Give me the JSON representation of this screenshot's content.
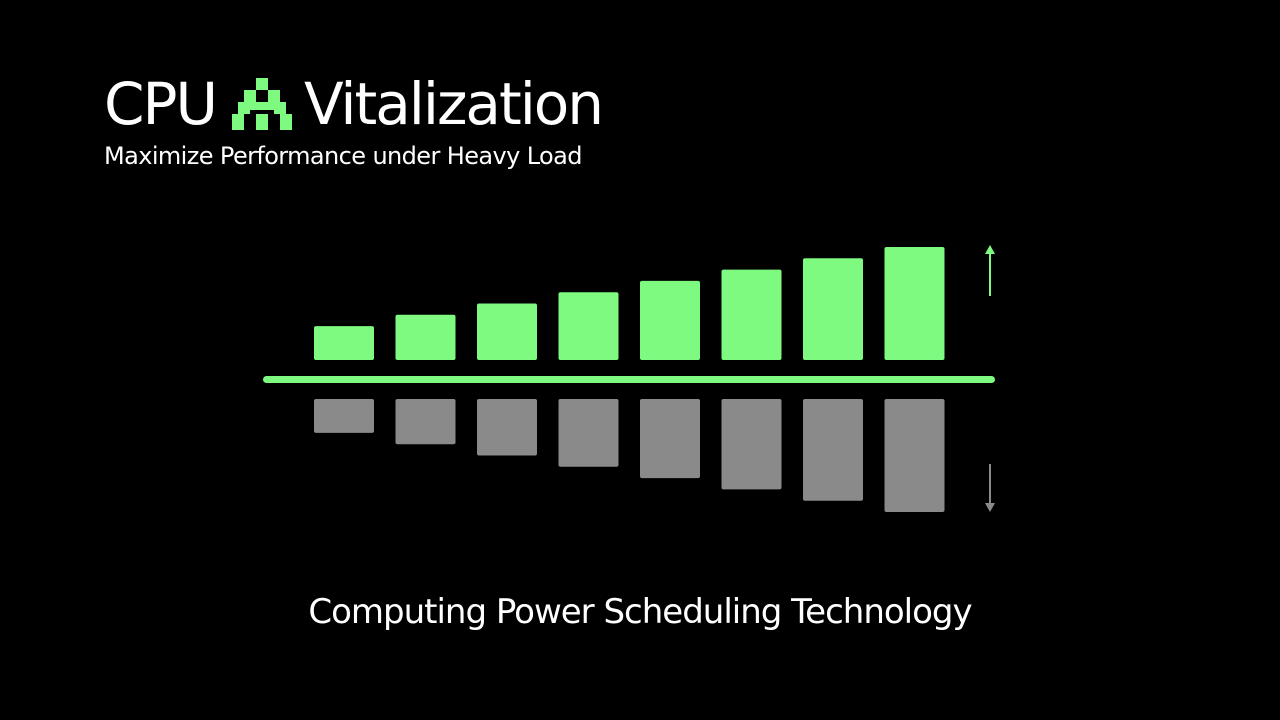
{
  "header": {
    "title_left": "CPU",
    "title_right": "Vitalization",
    "subtitle": "Maximize Performance under Heavy Load",
    "logo_icon": "stepped-pyramid-icon"
  },
  "footer": {
    "caption": "Computing Power Scheduling Technology"
  },
  "colors": {
    "background": "#000000",
    "accent_green": "#7dfa7f",
    "gray": "#8a8a8a",
    "text": "#ffffff"
  },
  "chart_data": {
    "type": "bar",
    "title": "",
    "xlabel": "",
    "ylabel": "",
    "categories": [
      "",
      "",
      "",
      "",
      "",
      "",
      "",
      ""
    ],
    "series": [
      {
        "values": [
          3,
          4,
          5,
          6,
          7,
          8,
          9,
          10
        ],
        "color": "#7dfa7f",
        "direction": "up"
      },
      {
        "values": [
          3,
          4,
          5,
          6,
          7,
          8,
          9,
          10
        ],
        "color": "#8a8a8a",
        "direction": "down"
      }
    ],
    "ylim": [
      0,
      10
    ],
    "grid": false,
    "legend": "none",
    "indicators": [
      {
        "name": "up-arrow-icon",
        "color": "#7dfa7f"
      },
      {
        "name": "down-arrow-icon",
        "color": "#8a8a8a"
      }
    ]
  }
}
